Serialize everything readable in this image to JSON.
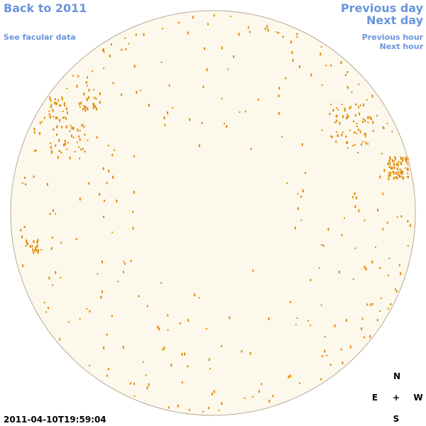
{
  "nav": {
    "back_year": "Back to 2011",
    "facular_link": "See facular data",
    "previous_day": "Previous day",
    "next_day": "Next day",
    "previous_hour": "Previous hour",
    "next_hour": "Next hour"
  },
  "timestamp": "2011-04-10T19:59:04",
  "compass": {
    "north": "N",
    "east": "E",
    "center": "+",
    "west": "W",
    "south": "S"
  }
}
